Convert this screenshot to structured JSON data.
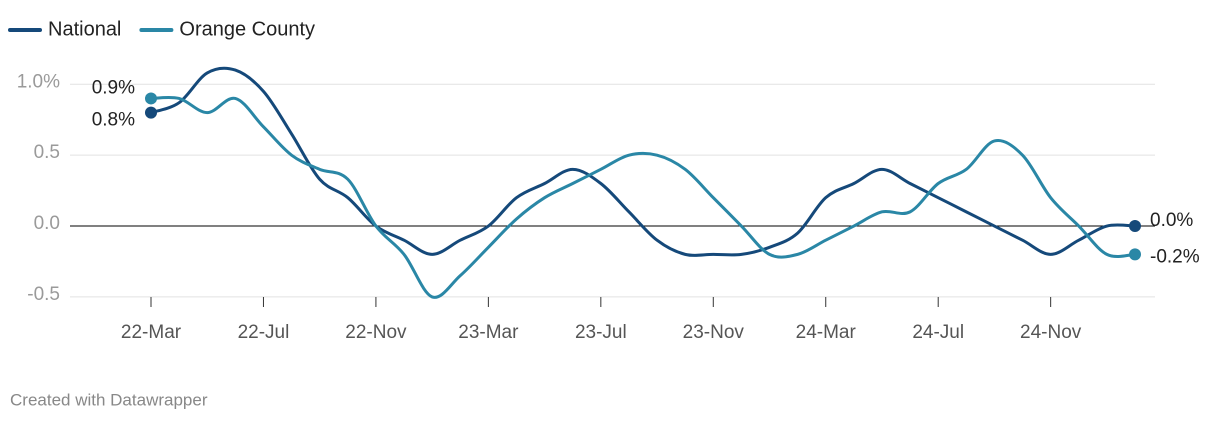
{
  "chart_data": {
    "type": "line",
    "categories": [
      "22-Mar",
      null,
      null,
      null,
      "22-Jul",
      null,
      null,
      null,
      "22-Nov",
      null,
      null,
      null,
      "23-Mar",
      null,
      null,
      null,
      "23-Jul",
      null,
      null,
      null,
      "23-Nov",
      null,
      null,
      null,
      "24-Mar",
      null,
      null,
      null,
      "24-Jul",
      null,
      null,
      null,
      "24-Nov",
      null,
      null,
      null
    ],
    "series": [
      {
        "name": "National",
        "color": "#15497a",
        "values": [
          0.8,
          0.87,
          1.08,
          1.1,
          0.95,
          0.65,
          0.33,
          0.2,
          0.0,
          -0.1,
          -0.2,
          -0.1,
          0.0,
          0.2,
          0.3,
          0.4,
          0.3,
          0.1,
          -0.1,
          -0.2,
          -0.2,
          -0.2,
          -0.15,
          -0.05,
          0.2,
          0.3,
          0.4,
          0.3,
          0.2,
          0.1,
          0.0,
          -0.1,
          -0.2,
          -0.1,
          0.0,
          0.0
        ],
        "value_labels": [
          "0.8%",
          null,
          null,
          null,
          null,
          null,
          null,
          null,
          null,
          null,
          null,
          null,
          null,
          null,
          null,
          null,
          null,
          null,
          null,
          null,
          null,
          null,
          null,
          null,
          null,
          null,
          null,
          null,
          null,
          null,
          null,
          null,
          null,
          null,
          null,
          "0.0%"
        ]
      },
      {
        "name": "Orange County",
        "color": "#2a87a6",
        "values": [
          0.9,
          0.9,
          0.8,
          0.9,
          0.7,
          0.5,
          0.4,
          0.33,
          0.0,
          -0.2,
          -0.5,
          -0.35,
          -0.15,
          0.05,
          0.2,
          0.3,
          0.4,
          0.5,
          0.5,
          0.4,
          0.2,
          0.0,
          -0.2,
          -0.2,
          -0.1,
          0.0,
          0.1,
          0.1,
          0.3,
          0.4,
          0.6,
          0.5,
          0.2,
          0.0,
          -0.2,
          -0.2
        ],
        "value_labels": [
          "0.9%",
          null,
          null,
          null,
          null,
          null,
          null,
          null,
          null,
          null,
          null,
          null,
          null,
          null,
          null,
          null,
          null,
          null,
          null,
          null,
          null,
          null,
          null,
          null,
          null,
          null,
          null,
          null,
          null,
          null,
          null,
          null,
          null,
          null,
          null,
          "-0.2%"
        ]
      }
    ],
    "ylim": [
      -0.55,
      1.15
    ],
    "yticks": [
      {
        "value": 1.0,
        "label": "1.0%"
      },
      0.5,
      {
        "value": 0,
        "label": "0.0"
      },
      -0.5
    ],
    "grid": true,
    "legend": "top-left",
    "credit": "Created with Datawrapper"
  }
}
